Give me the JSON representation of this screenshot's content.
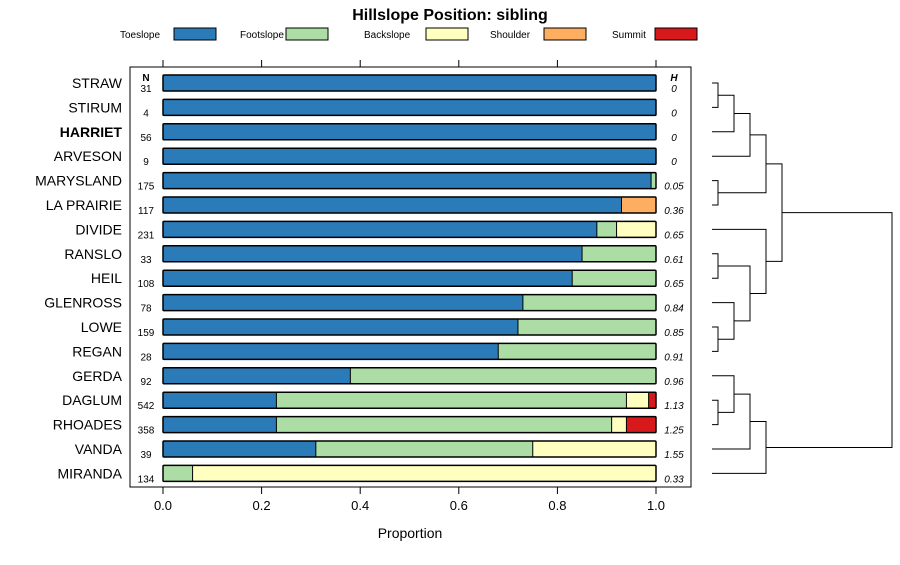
{
  "chart_data": {
    "type": "bar",
    "stacked": true,
    "orientation": "horizontal",
    "title": "Hillslope Position: sibling",
    "xlabel": "Proportion",
    "ylabel": "",
    "xlim": [
      0,
      1
    ],
    "xticks": [
      0.0,
      0.2,
      0.4,
      0.6,
      0.8,
      1.0
    ],
    "xtick_labels": [
      "0.0",
      "0.2",
      "0.4",
      "0.6",
      "0.8",
      "1.0"
    ],
    "n_header": "N",
    "h_header": "H",
    "legend_position": "top",
    "grid": false,
    "highlighted_category": "HARRIET",
    "series": [
      {
        "name": "Toeslope",
        "color": "#2b7bb9"
      },
      {
        "name": "Footslope",
        "color": "#abdda4"
      },
      {
        "name": "Backslope",
        "color": "#ffffbf"
      },
      {
        "name": "Shoulder",
        "color": "#fdae61"
      },
      {
        "name": "Summit",
        "color": "#d7191c"
      }
    ],
    "categories": [
      "STRAW",
      "STIRUM",
      "HARRIET",
      "ARVESON",
      "MARYSLAND",
      "LA PRAIRIE",
      "DIVIDE",
      "RANSLO",
      "HEIL",
      "GLENROSS",
      "LOWE",
      "REGAN",
      "GERDA",
      "DAGLUM",
      "RHOADES",
      "VANDA",
      "MIRANDA"
    ],
    "n": [
      "31",
      "4",
      "56",
      "9",
      "175",
      "117",
      "231",
      "33",
      "108",
      "78",
      "159",
      "28",
      "92",
      "542",
      "358",
      "39",
      "134"
    ],
    "h": [
      "0",
      "0",
      "0",
      "0",
      "0.05",
      "0.36",
      "0.65",
      "0.61",
      "0.65",
      "0.84",
      "0.85",
      "0.91",
      "0.96",
      "1.13",
      "1.25",
      "1.55",
      "0.33"
    ],
    "values": [
      [
        1.0,
        0,
        0,
        0,
        0
      ],
      [
        1.0,
        0,
        0,
        0,
        0
      ],
      [
        1.0,
        0,
        0,
        0,
        0
      ],
      [
        1.0,
        0,
        0,
        0,
        0
      ],
      [
        0.99,
        0.01,
        0,
        0,
        0
      ],
      [
        0.93,
        0,
        0,
        0.07,
        0
      ],
      [
        0.88,
        0.04,
        0.08,
        0,
        0
      ],
      [
        0.85,
        0.15,
        0,
        0,
        0
      ],
      [
        0.83,
        0.17,
        0,
        0,
        0
      ],
      [
        0.73,
        0.27,
        0,
        0,
        0
      ],
      [
        0.72,
        0.28,
        0,
        0,
        0
      ],
      [
        0.68,
        0.32,
        0,
        0,
        0
      ],
      [
        0.38,
        0.62,
        0,
        0,
        0
      ],
      [
        0.23,
        0.71,
        0.045,
        0,
        0.015
      ],
      [
        0.23,
        0.68,
        0.03,
        0,
        0.06
      ],
      [
        0.31,
        0.44,
        0.25,
        0,
        0
      ],
      [
        0,
        0.06,
        0.94,
        0,
        0
      ]
    ]
  }
}
